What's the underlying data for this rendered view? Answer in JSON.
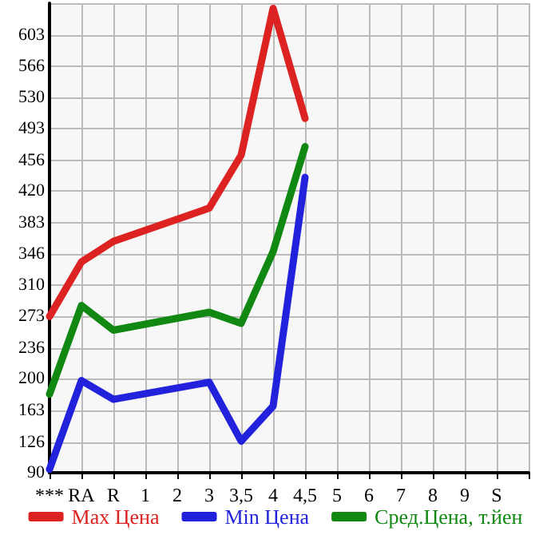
{
  "chart_data": {
    "type": "line",
    "categories": [
      "***",
      "RA",
      "R",
      "1",
      "2",
      "3",
      "3,5",
      "4",
      "4,5",
      "5",
      "6",
      "7",
      "8",
      "9",
      "S",
      null
    ],
    "series": [
      {
        "name": "Max Цена",
        "color": "#dd2222",
        "values": [
          273,
          337,
          361,
          null,
          null,
          400,
          462,
          634,
          505,
          null,
          null,
          null,
          null,
          null,
          null,
          null
        ]
      },
      {
        "name": "Min Цена",
        "color": "#2222dd",
        "values": [
          94,
          198,
          176,
          null,
          null,
          196,
          127,
          168,
          436,
          null,
          null,
          null,
          null,
          null,
          null,
          null
        ]
      },
      {
        "name": "Сред.Цена, т.йен",
        "color": "#118811",
        "values": [
          182,
          286,
          257,
          null,
          null,
          278,
          265,
          349,
          472,
          null,
          null,
          null,
          null,
          null,
          null,
          null
        ]
      }
    ],
    "ylim": [
      90,
      640
    ],
    "yticks": [
      90,
      126,
      163,
      200,
      236,
      273,
      310,
      346,
      383,
      420,
      456,
      493,
      530,
      566,
      603,
      {
        "value": 640,
        "label": null
      }
    ],
    "grid": true,
    "legend": "bottom",
    "marker": "none",
    "line_style": "solid"
  }
}
